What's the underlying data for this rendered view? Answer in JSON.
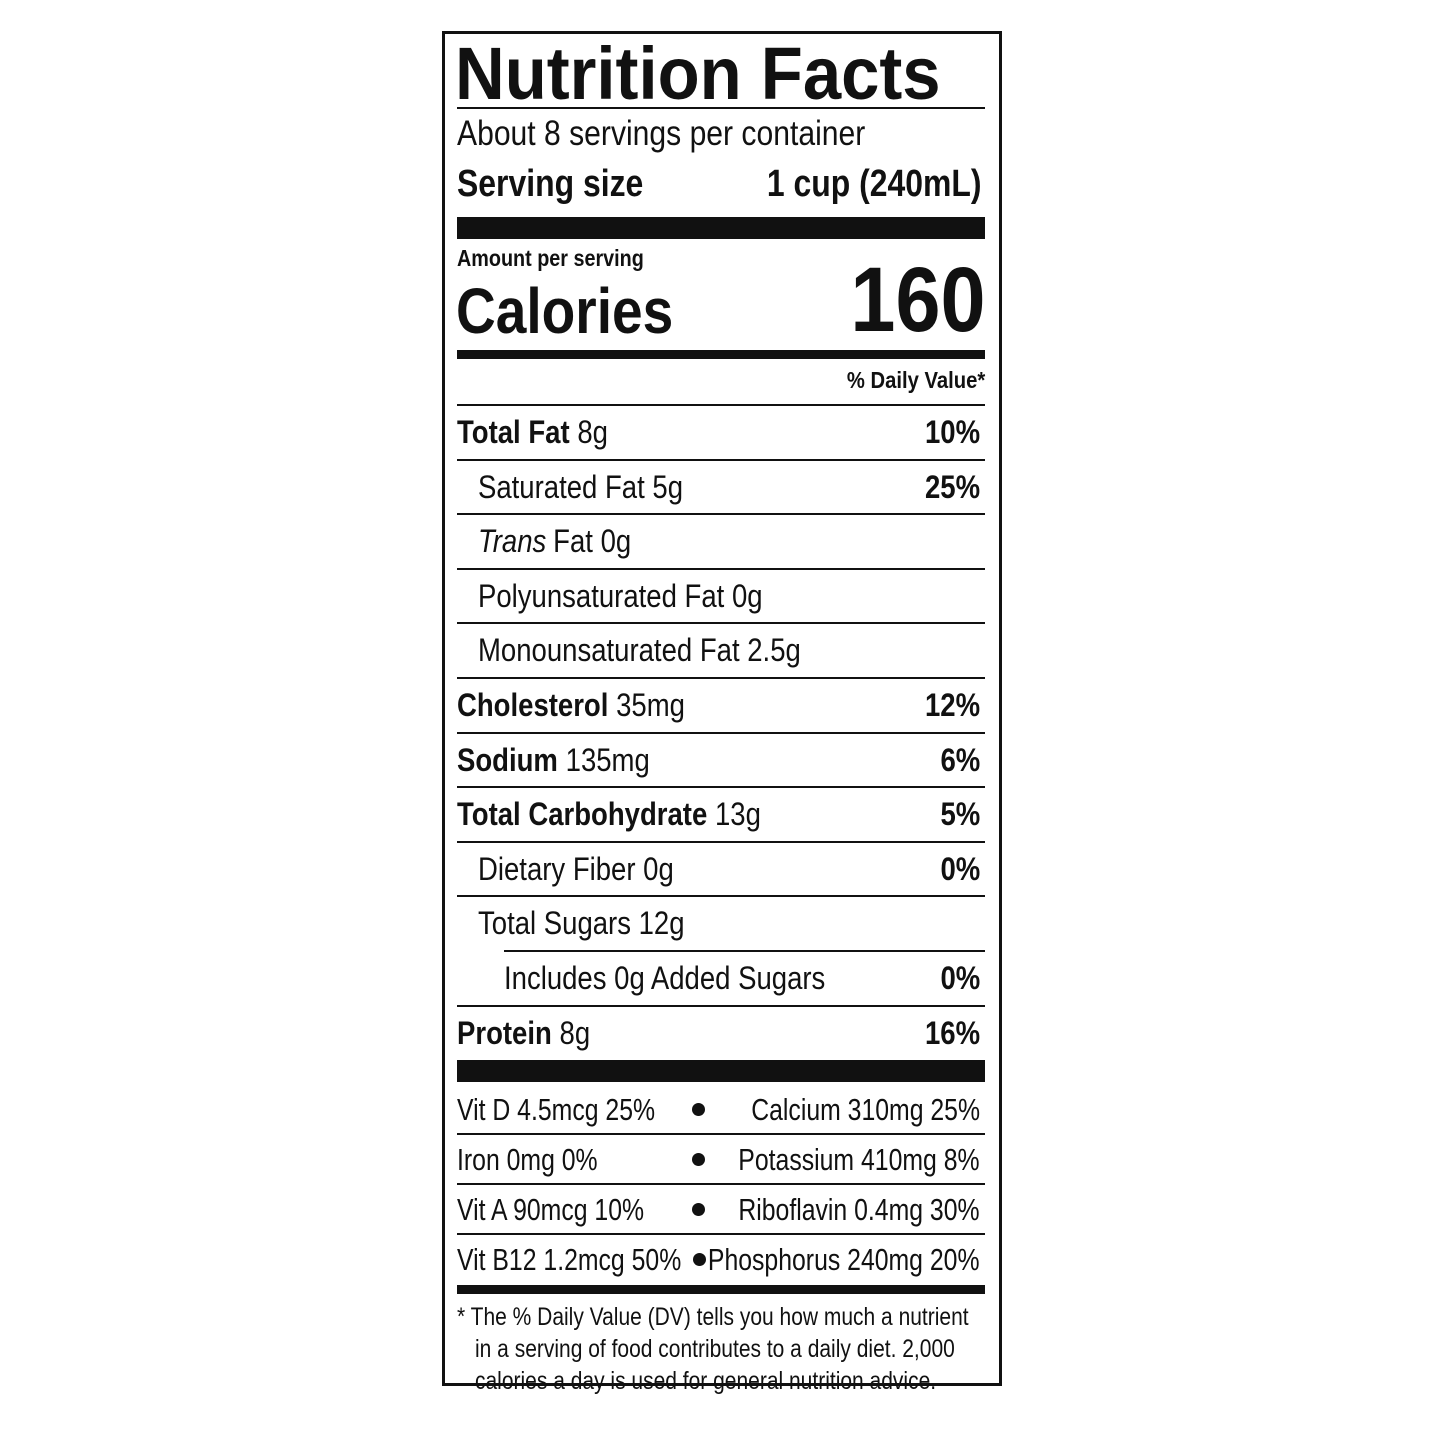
{
  "title": "Nutrition Facts",
  "servings": "About 8 servings per container",
  "serving_size": {
    "label": "Serving size",
    "value": "1 cup (240mL)"
  },
  "amount_per_serving": "Amount per serving",
  "calories": {
    "label": "Calories",
    "value": "160"
  },
  "daily_value_header": "% Daily Value*",
  "nutrients": [
    {
      "name": "Total Fat",
      "amount": "8g",
      "dv": "10%"
    },
    {
      "name": "Saturated Fat 5g",
      "dv": "25%"
    },
    {
      "italic": "Trans",
      "name": "Fat 0g"
    },
    {
      "name": "Polyunsaturated Fat 0g"
    },
    {
      "name": "Monounsaturated Fat 2.5g"
    },
    {
      "name": "Cholesterol",
      "amount": "35mg",
      "dv": "12%"
    },
    {
      "name": "Sodium",
      "amount": "135mg",
      "dv": "6%"
    },
    {
      "name": "Total Carbohydrate",
      "amount": "13g",
      "dv": "5%"
    },
    {
      "name": "Dietary Fiber 0g",
      "dv": "0%"
    },
    {
      "name": "Total Sugars 12g"
    },
    {
      "name": "Includes 0g Added Sugars",
      "dv": "0%"
    },
    {
      "name": "Protein",
      "amount": "8g",
      "dv": "16%"
    }
  ],
  "vitamins": [
    {
      "left": "Vit D 4.5mcg 25%",
      "right": "Calcium 310mg 25%"
    },
    {
      "left": "Iron 0mg 0%",
      "right": "Potassium 410mg 8%"
    },
    {
      "left": "Vit A 90mcg 10%",
      "right": "Riboflavin 0.4mg 30%"
    },
    {
      "left": "Vit B12 1.2mcg 50%",
      "right": "Phosphorus 240mg 20%"
    }
  ],
  "footnote": [
    "* The % Daily Value (DV) tells you how much a nutrient",
    "in a serving of food contributes to a daily diet. 2,000",
    "calories a day is used for general nutrition advice."
  ]
}
